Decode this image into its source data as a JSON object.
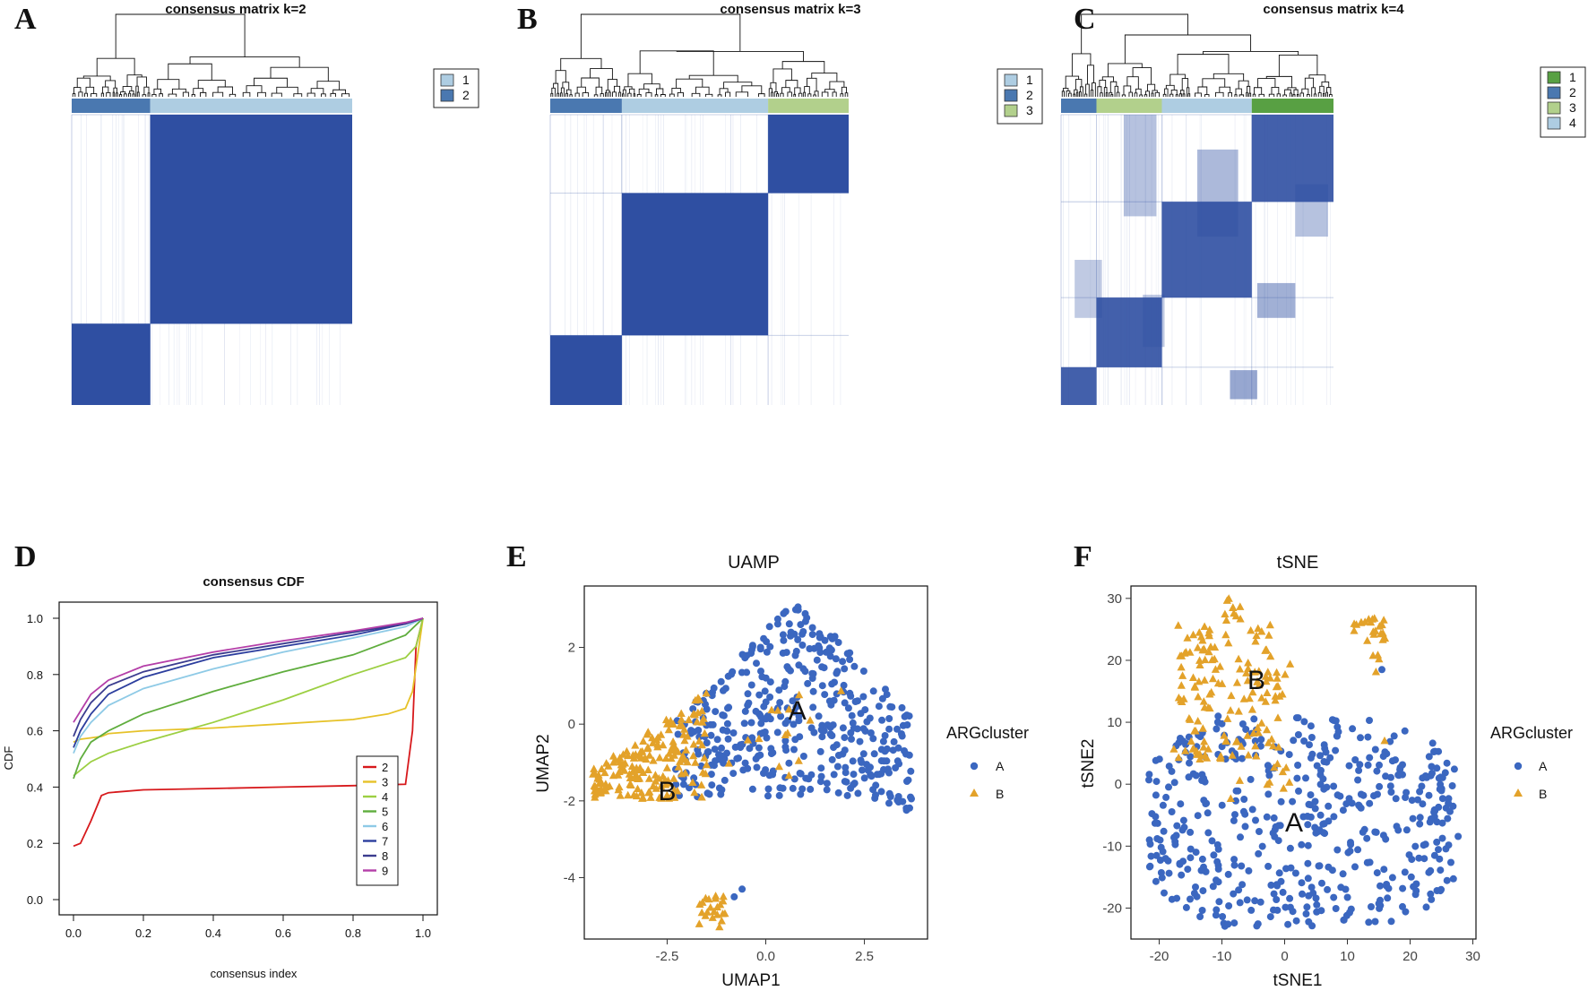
{
  "panels": {
    "A": "A",
    "B": "B",
    "C": "C",
    "D": "D",
    "E": "E",
    "F": "F"
  },
  "colors": {
    "matrix_fill": "#2f4fa2",
    "cluster_dark": "#4a78b0",
    "cluster_light": "#aecde2",
    "cluster_green_light": "#b2d08c",
    "cluster_green_dark": "#58a043",
    "point_a": "#3b67c0",
    "point_b": "#e3a22a"
  },
  "chart_data": [
    {
      "panel": "A",
      "type": "heatmap",
      "title": "consensus matrix k=2",
      "legend": [
        "1",
        "2"
      ],
      "legend_colors": [
        "#aecde2",
        "#4a78b0"
      ],
      "cluster_bar": [
        {
          "cluster": "2",
          "fraction": 0.28
        },
        {
          "cluster": "1",
          "fraction": 0.72
        }
      ]
    },
    {
      "panel": "B",
      "type": "heatmap",
      "title": "consensus matrix k=3",
      "legend": [
        "1",
        "2",
        "3"
      ],
      "legend_colors": [
        "#aecde2",
        "#4a78b0",
        "#b2d08c"
      ],
      "cluster_bar": [
        {
          "cluster": "2",
          "fraction": 0.24
        },
        {
          "cluster": "1",
          "fraction": 0.49
        },
        {
          "cluster": "3",
          "fraction": 0.27
        }
      ]
    },
    {
      "panel": "C",
      "type": "heatmap",
      "title": "consensus matrix k=4",
      "legend": [
        "1",
        "2",
        "3",
        "4"
      ],
      "legend_colors": [
        "#58a043",
        "#4a78b0",
        "#b2d08c",
        "#aecde2"
      ],
      "cluster_bar": [
        {
          "cluster": "2",
          "fraction": 0.13
        },
        {
          "cluster": "3",
          "fraction": 0.24
        },
        {
          "cluster": "4",
          "fraction": 0.33
        },
        {
          "cluster": "1",
          "fraction": 0.3
        }
      ]
    },
    {
      "panel": "D",
      "type": "line",
      "title": "consensus CDF",
      "xlabel": "consensus index",
      "ylabel": "CDF",
      "xlim": [
        0,
        1
      ],
      "ylim": [
        0,
        1
      ],
      "xticks": [
        "0.0",
        "0.2",
        "0.4",
        "0.6",
        "0.8",
        "1.0"
      ],
      "yticks": [
        "0.0",
        "0.2",
        "0.4",
        "0.6",
        "0.8",
        "1.0"
      ],
      "series": [
        {
          "name": "2",
          "color": "#d7191c",
          "x": [
            0.0,
            0.02,
            0.05,
            0.08,
            0.1,
            0.2,
            0.4,
            0.6,
            0.8,
            0.95,
            0.97,
            0.98,
            1.0
          ],
          "y": [
            0.19,
            0.2,
            0.28,
            0.37,
            0.38,
            0.39,
            0.395,
            0.4,
            0.405,
            0.41,
            0.6,
            0.9,
            1.0
          ]
        },
        {
          "name": "3",
          "color": "#e6c229",
          "x": [
            0.0,
            0.02,
            0.05,
            0.08,
            0.1,
            0.2,
            0.4,
            0.6,
            0.8,
            0.9,
            0.95,
            0.97,
            1.0
          ],
          "y": [
            0.56,
            0.57,
            0.575,
            0.58,
            0.59,
            0.6,
            0.61,
            0.625,
            0.64,
            0.66,
            0.68,
            0.74,
            1.0
          ]
        },
        {
          "name": "4",
          "color": "#9ccf42",
          "x": [
            0.0,
            0.02,
            0.05,
            0.1,
            0.2,
            0.4,
            0.6,
            0.8,
            0.95,
            0.98,
            1.0
          ],
          "y": [
            0.44,
            0.46,
            0.49,
            0.52,
            0.56,
            0.63,
            0.71,
            0.8,
            0.86,
            0.9,
            1.0
          ]
        },
        {
          "name": "5",
          "color": "#5fad3d",
          "x": [
            0.0,
            0.02,
            0.05,
            0.1,
            0.2,
            0.4,
            0.6,
            0.8,
            0.95,
            1.0
          ],
          "y": [
            0.43,
            0.5,
            0.56,
            0.6,
            0.66,
            0.74,
            0.81,
            0.87,
            0.94,
            1.0
          ]
        },
        {
          "name": "6",
          "color": "#8ecae6",
          "x": [
            0.0,
            0.02,
            0.05,
            0.1,
            0.2,
            0.4,
            0.6,
            0.8,
            0.95,
            1.0
          ],
          "y": [
            0.52,
            0.58,
            0.63,
            0.69,
            0.75,
            0.82,
            0.88,
            0.93,
            0.97,
            1.0
          ]
        },
        {
          "name": "7",
          "color": "#2c3e9e",
          "x": [
            0.0,
            0.02,
            0.05,
            0.1,
            0.2,
            0.4,
            0.6,
            0.8,
            0.95,
            1.0
          ],
          "y": [
            0.54,
            0.6,
            0.66,
            0.73,
            0.79,
            0.86,
            0.9,
            0.94,
            0.98,
            1.0
          ]
        },
        {
          "name": "8",
          "color": "#3b3c8f",
          "x": [
            0.0,
            0.02,
            0.05,
            0.1,
            0.2,
            0.4,
            0.6,
            0.8,
            0.95,
            1.0
          ],
          "y": [
            0.58,
            0.64,
            0.7,
            0.76,
            0.81,
            0.87,
            0.91,
            0.95,
            0.98,
            1.0
          ]
        },
        {
          "name": "9",
          "color": "#b43ea8",
          "x": [
            0.0,
            0.02,
            0.05,
            0.1,
            0.2,
            0.4,
            0.6,
            0.8,
            0.95,
            1.0
          ],
          "y": [
            0.63,
            0.67,
            0.73,
            0.78,
            0.83,
            0.88,
            0.92,
            0.955,
            0.985,
            1.0
          ]
        }
      ]
    },
    {
      "panel": "E",
      "type": "scatter",
      "title": "UAMP",
      "xlabel": "UMAP1",
      "ylabel": "UMAP2",
      "xlim": [
        -4.6,
        4.1
      ],
      "ylim": [
        -5.6,
        3.6
      ],
      "xticks": [
        -2.5,
        0.0,
        2.5
      ],
      "xtick_labels": [
        "-2.5",
        "0.0",
        "2.5"
      ],
      "yticks": [
        2,
        0,
        -2,
        -4
      ],
      "ytick_labels": [
        "2",
        "0",
        "-2",
        "-4"
      ],
      "legend_title": "ARGcluster",
      "legend": [
        "A",
        "B"
      ],
      "cluster_labels": [
        {
          "text": "A",
          "x": 0.8,
          "y": 0.3
        },
        {
          "text": "B",
          "x": -2.5,
          "y": -1.8
        }
      ],
      "seed": 11
    },
    {
      "panel": "F",
      "type": "scatter",
      "title": "tSNE",
      "xlabel": "tSNE1",
      "ylabel": "tSNE2",
      "xlim": [
        -24.5,
        30.5
      ],
      "ylim": [
        -25,
        32
      ],
      "xticks": [
        -20,
        -10,
        0,
        10,
        20,
        30
      ],
      "xtick_labels": [
        "-20",
        "-10",
        "0",
        "10",
        "20",
        "30"
      ],
      "yticks": [
        30,
        20,
        10,
        0,
        -10,
        -20
      ],
      "ytick_labels": [
        "30",
        "20",
        "10",
        "0",
        "-10",
        "-20"
      ],
      "legend_title": "ARGcluster",
      "legend": [
        "A",
        "B"
      ],
      "cluster_labels": [
        {
          "text": "A",
          "x": 1.5,
          "y": -6.5
        },
        {
          "text": "B",
          "x": -4.5,
          "y": 16.5
        }
      ],
      "seed": 29
    }
  ]
}
